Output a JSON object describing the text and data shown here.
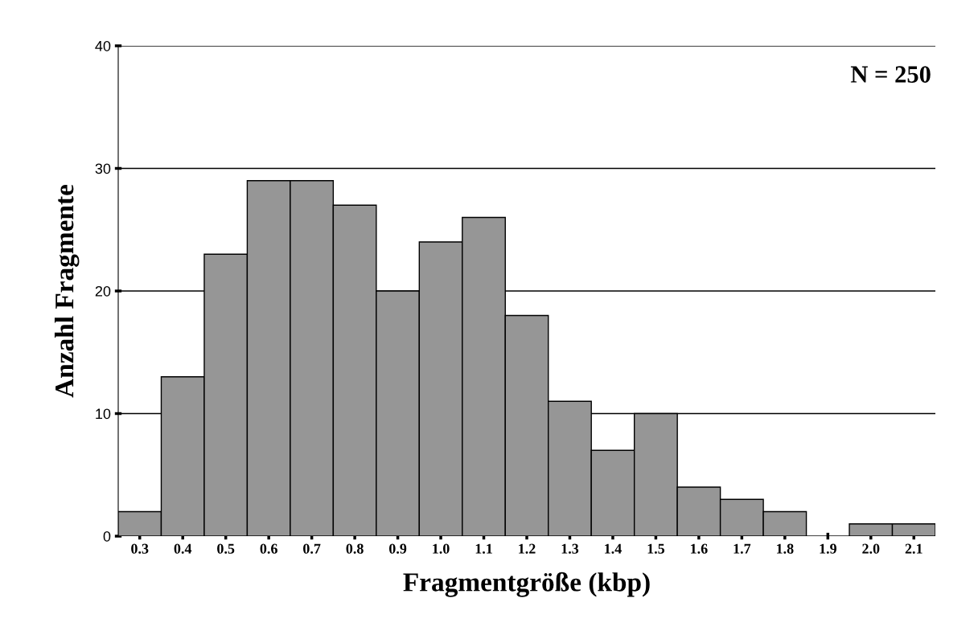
{
  "chart_data": {
    "type": "histogram",
    "xlabel": "Fragmentgröße (kbp)",
    "ylabel": "Anzahl Fragmente",
    "annotations": [
      "N = 250"
    ],
    "bins": [
      0.25,
      0.35,
      0.45,
      0.55,
      0.65,
      0.75,
      0.85,
      0.95,
      1.05,
      1.15,
      1.25,
      1.35,
      1.45,
      1.55,
      1.65,
      1.75,
      1.85,
      1.95,
      2.05,
      2.15
    ],
    "values": [
      2,
      13,
      23,
      29,
      29,
      27,
      20,
      24,
      26,
      18,
      11,
      7,
      10,
      4,
      3,
      2,
      0,
      1,
      1
    ],
    "color": "#969696",
    "xlim": [
      0.25,
      2.15
    ],
    "xticks": [
      0.3,
      0.4,
      0.5,
      0.6,
      0.7,
      0.8,
      0.9,
      {
        "value": 1,
        "label": "1.0"
      },
      1.1,
      1.2,
      1.3,
      1.4,
      1.5,
      1.6,
      1.7,
      1.8,
      1.9,
      {
        "value": 2,
        "label": "2.0"
      },
      2.1
    ],
    "ylim": [
      0,
      40
    ],
    "yticks": [
      0,
      10,
      20,
      30,
      40
    ],
    "grid": "y"
  }
}
